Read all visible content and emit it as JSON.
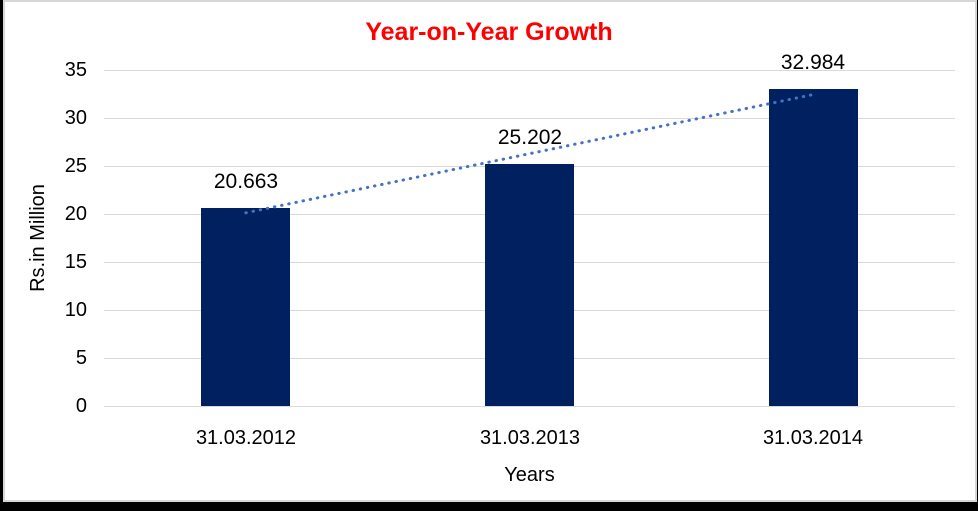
{
  "window": {
    "background_color": "#000000",
    "panel_background": "#ffffff",
    "panel_border_color": "#d6d6d6"
  },
  "chart_data": {
    "type": "bar",
    "title": "Year-on-Year Growth",
    "title_color": "#ff0000",
    "categories": [
      "31.03.2012",
      "31.03.2013",
      "31.03.2014"
    ],
    "values": [
      20.663,
      25.202,
      32.984
    ],
    "data_labels": [
      "20.663",
      "25.202",
      "32.984"
    ],
    "xlabel": "Years",
    "ylabel": "Rs.in Million",
    "ylim": [
      0,
      35
    ],
    "yticks": [
      0,
      5,
      10,
      15,
      20,
      25,
      30,
      35
    ],
    "ytick_labels": [
      "0",
      "5",
      "10",
      "15",
      "20",
      "25",
      "30",
      "35"
    ],
    "bar_color": "#002060",
    "gridlines": true,
    "gridline_color": "#d9d9d9",
    "legend": "none",
    "trendline": {
      "type": "linear",
      "style": "dotted",
      "color": "#4472c4"
    }
  }
}
